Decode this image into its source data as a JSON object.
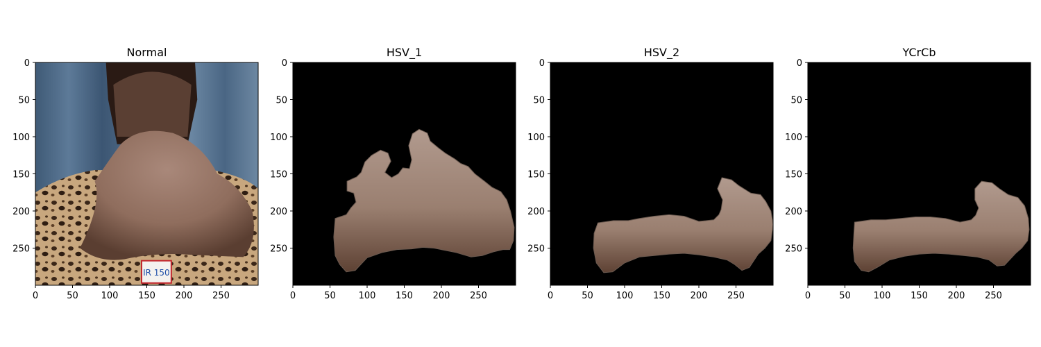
{
  "chart_data": [
    {
      "type": "image",
      "title": "Normal",
      "xlim": [
        0,
        300
      ],
      "ylim": [
        300,
        0
      ],
      "xticks": [
        "0",
        "50",
        "100",
        "150",
        "200",
        "250"
      ],
      "yticks": [
        "0",
        "50",
        "100",
        "150",
        "200",
        "250"
      ],
      "content": "photo",
      "label_text": "IR 150"
    },
    {
      "type": "image",
      "title": "HSV_1",
      "xlim": [
        0,
        300
      ],
      "ylim": [
        300,
        0
      ],
      "xticks": [
        "0",
        "50",
        "100",
        "150",
        "200",
        "250"
      ],
      "yticks": [
        "0",
        "50",
        "100",
        "150",
        "200",
        "250"
      ],
      "content": "mask",
      "mask_outline": [
        [
          57,
          210
        ],
        [
          72,
          205
        ],
        [
          78,
          196
        ],
        [
          85,
          188
        ],
        [
          82,
          176
        ],
        [
          73,
          173
        ],
        [
          73,
          160
        ],
        [
          86,
          154
        ],
        [
          92,
          148
        ],
        [
          97,
          134
        ],
        [
          106,
          125
        ],
        [
          118,
          118
        ],
        [
          128,
          122
        ],
        [
          132,
          133
        ],
        [
          124,
          148
        ],
        [
          133,
          155
        ],
        [
          142,
          150
        ],
        [
          148,
          142
        ],
        [
          157,
          143
        ],
        [
          160,
          131
        ],
        [
          156,
          112
        ],
        [
          161,
          96
        ],
        [
          170,
          90
        ],
        [
          181,
          95
        ],
        [
          185,
          106
        ],
        [
          196,
          115
        ],
        [
          205,
          122
        ],
        [
          218,
          130
        ],
        [
          226,
          136
        ],
        [
          236,
          140
        ],
        [
          245,
          150
        ],
        [
          258,
          160
        ],
        [
          268,
          168
        ],
        [
          280,
          174
        ],
        [
          288,
          185
        ],
        [
          293,
          200
        ],
        [
          298,
          222
        ],
        [
          297,
          240
        ],
        [
          292,
          252
        ],
        [
          283,
          252
        ],
        [
          270,
          255
        ],
        [
          255,
          260
        ],
        [
          240,
          262
        ],
        [
          220,
          256
        ],
        [
          190,
          250
        ],
        [
          175,
          249
        ],
        [
          160,
          251
        ],
        [
          140,
          252
        ],
        [
          120,
          256
        ],
        [
          100,
          263
        ],
        [
          84,
          280
        ],
        [
          72,
          282
        ],
        [
          63,
          272
        ],
        [
          57,
          260
        ],
        [
          55,
          235
        ]
      ]
    },
    {
      "type": "image",
      "title": "HSV_2",
      "xlim": [
        0,
        300
      ],
      "ylim": [
        300,
        0
      ],
      "xticks": [
        "0",
        "50",
        "100",
        "150",
        "200",
        "250"
      ],
      "yticks": [
        "0",
        "50",
        "100",
        "150",
        "200",
        "250"
      ],
      "content": "mask",
      "mask_outline": [
        [
          64,
          216
        ],
        [
          85,
          213
        ],
        [
          105,
          213
        ],
        [
          120,
          210
        ],
        [
          140,
          207
        ],
        [
          160,
          205
        ],
        [
          180,
          207
        ],
        [
          200,
          214
        ],
        [
          220,
          212
        ],
        [
          227,
          205
        ],
        [
          230,
          198
        ],
        [
          232,
          185
        ],
        [
          225,
          170
        ],
        [
          231,
          155
        ],
        [
          244,
          158
        ],
        [
          254,
          166
        ],
        [
          270,
          176
        ],
        [
          283,
          178
        ],
        [
          290,
          187
        ],
        [
          297,
          200
        ],
        [
          300,
          218
        ],
        [
          297,
          240
        ],
        [
          289,
          250
        ],
        [
          280,
          258
        ],
        [
          268,
          276
        ],
        [
          258,
          280
        ],
        [
          248,
          272
        ],
        [
          238,
          266
        ],
        [
          220,
          262
        ],
        [
          200,
          259
        ],
        [
          180,
          257
        ],
        [
          160,
          258
        ],
        [
          140,
          260
        ],
        [
          120,
          262
        ],
        [
          100,
          270
        ],
        [
          84,
          282
        ],
        [
          72,
          283
        ],
        [
          62,
          270
        ],
        [
          58,
          250
        ],
        [
          59,
          230
        ]
      ]
    },
    {
      "type": "image",
      "title": "YCrCb",
      "xlim": [
        0,
        300
      ],
      "ylim": [
        300,
        0
      ],
      "xticks": [
        "0",
        "50",
        "100",
        "150",
        "200",
        "250"
      ],
      "yticks": [
        "0",
        "50",
        "100",
        "150",
        "200",
        "250"
      ],
      "content": "mask",
      "mask_outline": [
        [
          63,
          215
        ],
        [
          85,
          212
        ],
        [
          105,
          212
        ],
        [
          125,
          210
        ],
        [
          145,
          208
        ],
        [
          165,
          208
        ],
        [
          185,
          210
        ],
        [
          205,
          215
        ],
        [
          220,
          212
        ],
        [
          226,
          206
        ],
        [
          230,
          196
        ],
        [
          225,
          185
        ],
        [
          225,
          170
        ],
        [
          234,
          160
        ],
        [
          248,
          162
        ],
        [
          258,
          170
        ],
        [
          270,
          178
        ],
        [
          283,
          182
        ],
        [
          292,
          193
        ],
        [
          297,
          210
        ],
        [
          298,
          225
        ],
        [
          296,
          240
        ],
        [
          288,
          250
        ],
        [
          280,
          257
        ],
        [
          265,
          273
        ],
        [
          255,
          274
        ],
        [
          244,
          266
        ],
        [
          228,
          262
        ],
        [
          210,
          260
        ],
        [
          190,
          258
        ],
        [
          170,
          257
        ],
        [
          150,
          258
        ],
        [
          130,
          261
        ],
        [
          110,
          266
        ],
        [
          95,
          275
        ],
        [
          82,
          282
        ],
        [
          72,
          280
        ],
        [
          63,
          268
        ],
        [
          61,
          250
        ],
        [
          62,
          232
        ]
      ]
    }
  ]
}
